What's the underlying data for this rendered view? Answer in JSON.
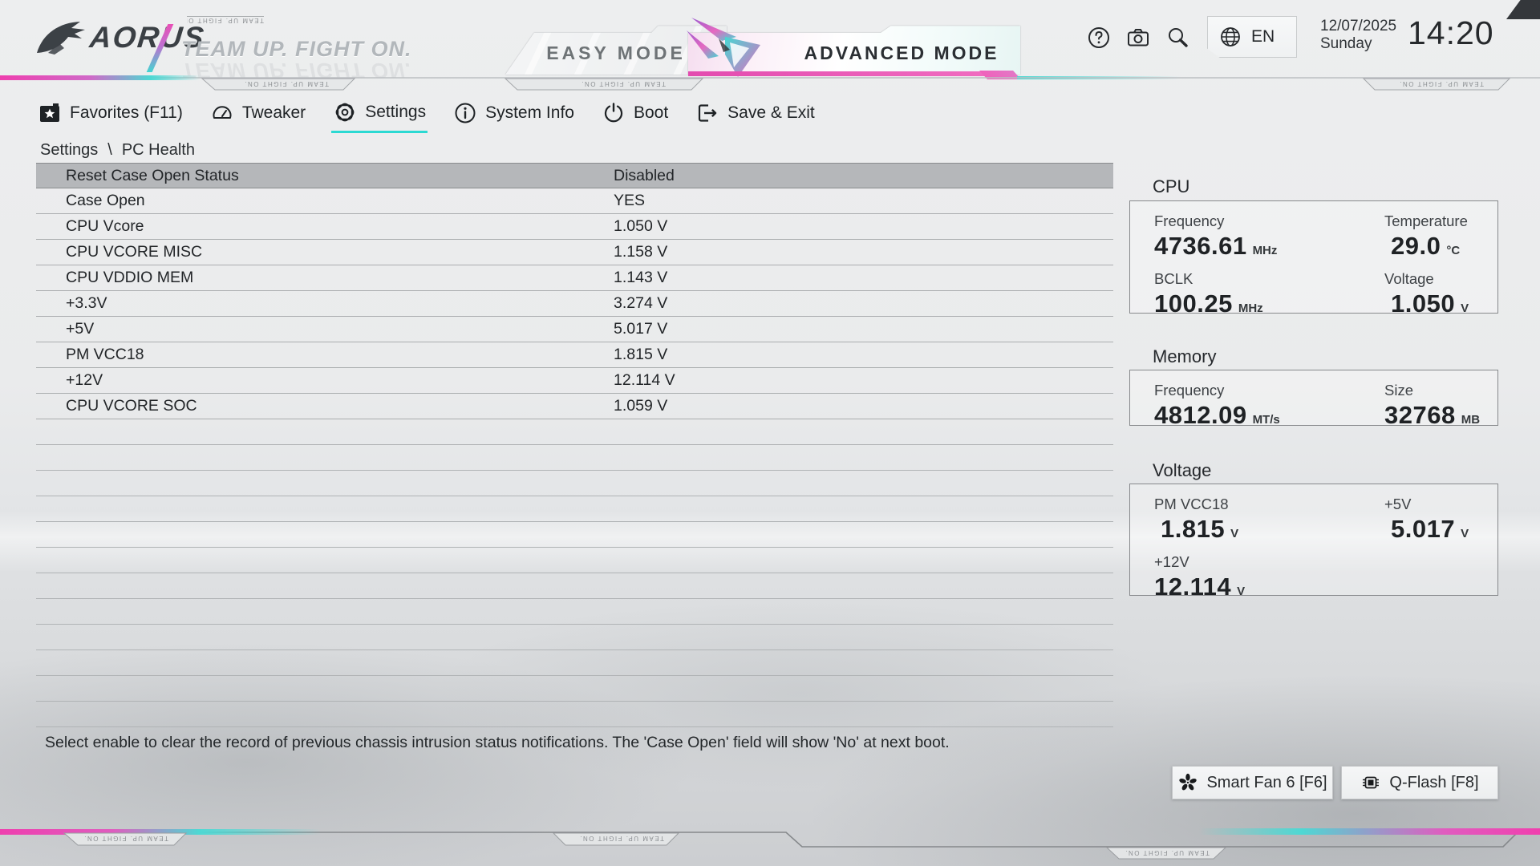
{
  "header": {
    "brand": "AORUS",
    "slogan": "TEAM UP. FIGHT ON.",
    "tabs": [
      {
        "label": "EASY MODE"
      },
      {
        "label": "ADVANCED MODE"
      }
    ],
    "language": "EN",
    "date": "12/07/2025",
    "day": "Sunday",
    "time": "14:20"
  },
  "menu": {
    "items": [
      {
        "label": "Favorites (F11)"
      },
      {
        "label": "Tweaker"
      },
      {
        "label": "Settings"
      },
      {
        "label": "System Info"
      },
      {
        "label": "Boot"
      },
      {
        "label": "Save & Exit"
      }
    ]
  },
  "breadcrumb": {
    "section": "Settings",
    "separator": "\\",
    "page": "PC Health"
  },
  "table": {
    "rows": [
      {
        "label": "Reset Case Open Status",
        "value": "Disabled",
        "selected": true
      },
      {
        "label": "Case Open",
        "value": "YES"
      },
      {
        "label": "CPU Vcore",
        "value": "1.050 V"
      },
      {
        "label": "CPU VCORE MISC",
        "value": "1.158 V"
      },
      {
        "label": "CPU VDDIO MEM",
        "value": "1.143 V"
      },
      {
        "label": "+3.3V",
        "value": "3.274 V"
      },
      {
        "label": "+5V",
        "value": "5.017 V"
      },
      {
        "label": "PM VCC18",
        "value": "1.815 V"
      },
      {
        "label": "+12V",
        "value": "12.114 V"
      },
      {
        "label": "CPU VCORE SOC",
        "value": "1.059 V"
      }
    ],
    "empty_row_count": 12
  },
  "sidebar": {
    "cpu": {
      "title": "CPU",
      "metrics": [
        {
          "label": "Frequency",
          "value": "4736.61",
          "unit": "MHz"
        },
        {
          "label": "Temperature",
          "value": "29.0",
          "unit": "°C"
        },
        {
          "label": "BCLK",
          "value": "100.25",
          "unit": "MHz"
        },
        {
          "label": "Voltage",
          "value": "1.050",
          "unit": "V"
        }
      ]
    },
    "memory": {
      "title": "Memory",
      "metrics": [
        {
          "label": "Frequency",
          "value": "4812.09",
          "unit": "MT/s"
        },
        {
          "label": "Size",
          "value": "32768",
          "unit": "MB"
        }
      ]
    },
    "voltage": {
      "title": "Voltage",
      "metrics": [
        {
          "label": "PM VCC18",
          "value": "1.815",
          "unit": "V"
        },
        {
          "label": "+5V",
          "value": "5.017",
          "unit": "V"
        },
        {
          "label": "+12V",
          "value": "12.114",
          "unit": "V"
        }
      ]
    }
  },
  "footer": {
    "help_text": "Select enable to clear the record of previous chassis intrusion status notifications. The 'Case Open' field will show 'No' at next boot.",
    "buttons": [
      {
        "label": "Smart Fan 6 [F6]"
      },
      {
        "label": "Q-Flash [F8]"
      }
    ]
  },
  "colors": {
    "accent_cyan": "#2bd9d2",
    "accent_pink": "#e94fb6",
    "text_dark": "#26292c"
  }
}
